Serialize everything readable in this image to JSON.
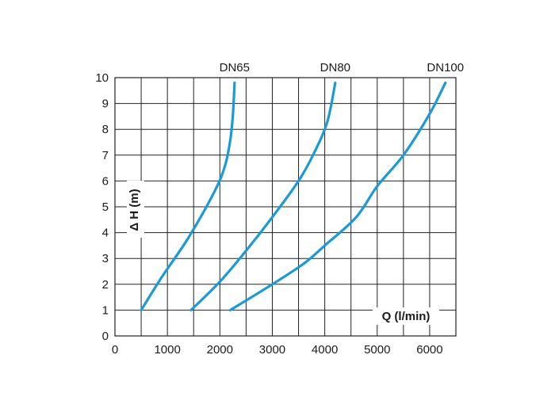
{
  "chart_data": {
    "type": "line",
    "title": "",
    "xlabel": "Q (l/min)",
    "ylabel": "Δ H (m)",
    "xlim": [
      0,
      6500
    ],
    "ylim": [
      0,
      10
    ],
    "x_ticks": [
      0,
      1000,
      2000,
      3000,
      4000,
      5000,
      6000
    ],
    "y_ticks": [
      0,
      1,
      2,
      3,
      4,
      5,
      6,
      7,
      8,
      9,
      10
    ],
    "grid": true,
    "line_color": "#1a9ad6",
    "grid_color": "#222222",
    "series": [
      {
        "name": "DN65",
        "points": [
          [
            500,
            1.0
          ],
          [
            900,
            2.3
          ],
          [
            1400,
            3.8
          ],
          [
            1900,
            5.6
          ],
          [
            2100,
            6.6
          ],
          [
            2200,
            7.6
          ],
          [
            2250,
            8.6
          ],
          [
            2280,
            9.8
          ]
        ]
      },
      {
        "name": "DN80",
        "points": [
          [
            1450,
            1.0
          ],
          [
            2000,
            2.1
          ],
          [
            2500,
            3.3
          ],
          [
            3000,
            4.6
          ],
          [
            3500,
            6.0
          ],
          [
            3800,
            7.1
          ],
          [
            4050,
            8.3
          ],
          [
            4200,
            9.8
          ]
        ]
      },
      {
        "name": "DN100",
        "points": [
          [
            2200,
            1.0
          ],
          [
            3000,
            2.0
          ],
          [
            3600,
            2.8
          ],
          [
            4000,
            3.5
          ],
          [
            4600,
            4.6
          ],
          [
            5000,
            5.8
          ],
          [
            5500,
            7.0
          ],
          [
            6000,
            8.6
          ],
          [
            6300,
            9.8
          ]
        ]
      }
    ]
  }
}
